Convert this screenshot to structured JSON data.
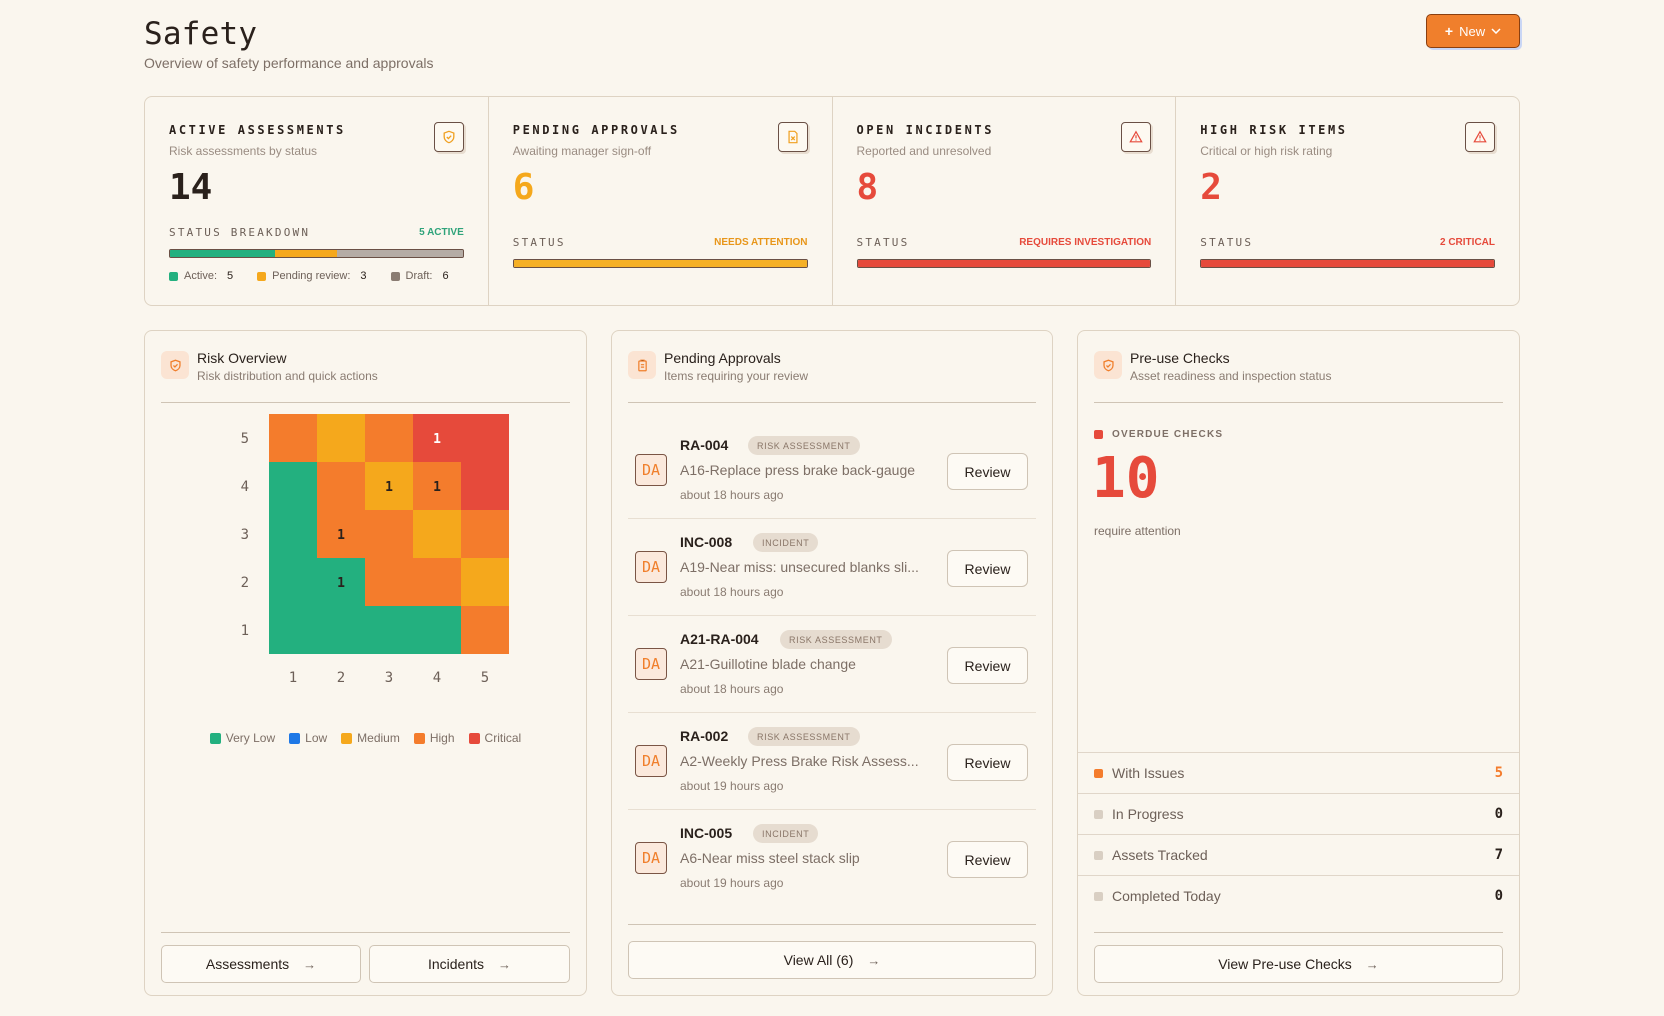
{
  "header": {
    "title": "Safety",
    "subtitle": "Overview of safety performance and approvals",
    "new_button": "New"
  },
  "stats": [
    {
      "title": "ACTIVE ASSESSMENTS",
      "subtitle": "Risk assessments by status",
      "value": "14",
      "value_color": "#2a211c",
      "status_label": "STATUS BREAKDOWN",
      "status_tag": "5 ACTIVE",
      "tag_color": "#2ea37a",
      "icon": "shield-check-icon",
      "breakdown": [
        {
          "label": "Active:",
          "value": "5",
          "color": "#23b07f"
        },
        {
          "label": "Pending review:",
          "value": "3",
          "color": "#f5a81c"
        },
        {
          "label": "Draft:",
          "value": "6",
          "color": "#b5aca5"
        }
      ]
    },
    {
      "title": "PENDING APPROVALS",
      "subtitle": "Awaiting manager sign-off",
      "value": "6",
      "value_color": "#f5a81c",
      "status_label": "STATUS",
      "status_tag": "NEEDS ATTENTION",
      "tag_color": "#e8961a",
      "bar_color": "#f5b026",
      "bar_fill": 1.0,
      "icon": "file-x-icon"
    },
    {
      "title": "OPEN INCIDENTS",
      "subtitle": "Reported and unresolved",
      "value": "8",
      "value_color": "#e64a3b",
      "status_label": "STATUS",
      "status_tag": "REQUIRES INVESTIGATION",
      "tag_color": "#e64a3b",
      "bar_color": "#e64a3b",
      "bar_fill": 1.0,
      "icon": "alert-triangle-icon"
    },
    {
      "title": "HIGH RISK ITEMS",
      "subtitle": "Critical or high risk rating",
      "value": "2",
      "value_color": "#e64a3b",
      "status_label": "STATUS",
      "status_tag": "2 CRITICAL",
      "tag_color": "#e64a3b",
      "bar_color": "#e64a3b",
      "bar_fill": 1.0,
      "icon": "alert-triangle-icon"
    }
  ],
  "risk": {
    "title": "Risk Overview",
    "subtitle": "Risk distribution and quick actions",
    "assessments_button": "Assessments",
    "incidents_button": "Incidents"
  },
  "chart_data": {
    "type": "heatmap",
    "x": [
      "1",
      "2",
      "3",
      "4",
      "5"
    ],
    "y": [
      "5",
      "4",
      "3",
      "2",
      "1"
    ],
    "levels": {
      "very_low": "#23b07f",
      "low": "#1e78e6",
      "medium": "#f5a81c",
      "high": "#f47c2c",
      "critical": "#e64a3b"
    },
    "cells": [
      [
        "high",
        "medium",
        "high",
        "critical",
        "critical"
      ],
      [
        "very_low",
        "high",
        "medium",
        "high",
        "critical"
      ],
      [
        "very_low",
        "high",
        "high",
        "medium",
        "high"
      ],
      [
        "very_low",
        "very_low",
        "high",
        "high",
        "medium"
      ],
      [
        "very_low",
        "very_low",
        "very_low",
        "very_low",
        "high"
      ]
    ],
    "counts": [
      [
        "",
        "",
        "",
        "1",
        ""
      ],
      [
        "",
        "",
        "1",
        "1",
        ""
      ],
      [
        "",
        "1",
        "",
        "",
        ""
      ],
      [
        "",
        "1",
        "",
        "",
        ""
      ],
      [
        "",
        "",
        "",
        "",
        ""
      ]
    ],
    "legend": [
      {
        "label": "Very Low",
        "color": "#23b07f"
      },
      {
        "label": "Low",
        "color": "#1e78e6"
      },
      {
        "label": "Medium",
        "color": "#f5a81c"
      },
      {
        "label": "High",
        "color": "#f47c2c"
      },
      {
        "label": "Critical",
        "color": "#e64a3b"
      }
    ]
  },
  "approvals": {
    "title": "Pending Approvals",
    "subtitle": "Items requiring your review",
    "review_label": "Review",
    "view_all": "View All (6)",
    "items": [
      {
        "avatar": "DA",
        "id": "RA-004",
        "badge": "RISK ASSESSMENT",
        "desc": "A16-Replace press brake back-gauge",
        "time": "about 18 hours ago"
      },
      {
        "avatar": "DA",
        "id": "INC-008",
        "badge": "INCIDENT",
        "desc": "A19-Near miss: unsecured blanks sli...",
        "time": "about 18 hours ago"
      },
      {
        "avatar": "DA",
        "id": "A21-RA-004",
        "badge": "RISK ASSESSMENT",
        "desc": "A21-Guillotine blade change",
        "time": "about 18 hours ago"
      },
      {
        "avatar": "DA",
        "id": "RA-002",
        "badge": "RISK ASSESSMENT",
        "desc": "A2-Weekly Press Brake Risk Assess...",
        "time": "about 19 hours ago"
      },
      {
        "avatar": "DA",
        "id": "INC-005",
        "badge": "INCIDENT",
        "desc": "A6-Near miss steel stack slip",
        "time": "about 19 hours ago"
      }
    ]
  },
  "preuse": {
    "title": "Pre-use Checks",
    "subtitle": "Asset readiness and inspection status",
    "overdue_label": "OVERDUE CHECKS",
    "overdue_value": "10",
    "overdue_caption": "require attention",
    "view_button": "View Pre-use Checks",
    "rows": [
      {
        "label": "With Issues",
        "value": "5",
        "color": "#f47c2c",
        "value_color": "#f47c2c"
      },
      {
        "label": "In Progress",
        "value": "0",
        "color": "#d9cfc3",
        "value_color": "#2a211c"
      },
      {
        "label": "Assets Tracked",
        "value": "7",
        "color": "#d9cfc3",
        "value_color": "#2a211c"
      },
      {
        "label": "Completed Today",
        "value": "0",
        "color": "#d9cfc3",
        "value_color": "#2a211c"
      }
    ]
  }
}
